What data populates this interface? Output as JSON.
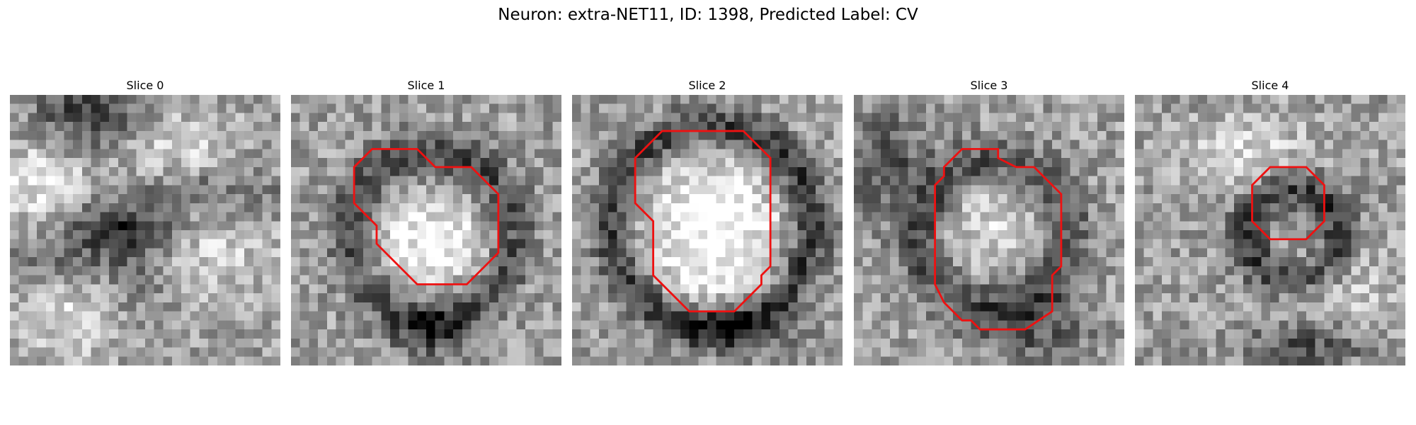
{
  "figure": {
    "title": "Neuron: extra-NET11, ID: 1398, Predicted Label: CV"
  },
  "contour_color": "#ee1111",
  "colormap": "gray",
  "panels": [
    {
      "title": "Slice 0",
      "seed": 11,
      "features": "blobs",
      "has_contour": false
    },
    {
      "title": "Slice 1",
      "seed": 23,
      "features": "ring-low",
      "has_contour": true
    },
    {
      "title": "Slice 2",
      "seed": 37,
      "features": "ring-bright",
      "has_contour": true
    },
    {
      "title": "Slice 3",
      "seed": 51,
      "features": "ring-dark",
      "has_contour": true
    },
    {
      "title": "Slice 4",
      "seed": 67,
      "features": "small-ring",
      "has_contour": true
    }
  ]
}
